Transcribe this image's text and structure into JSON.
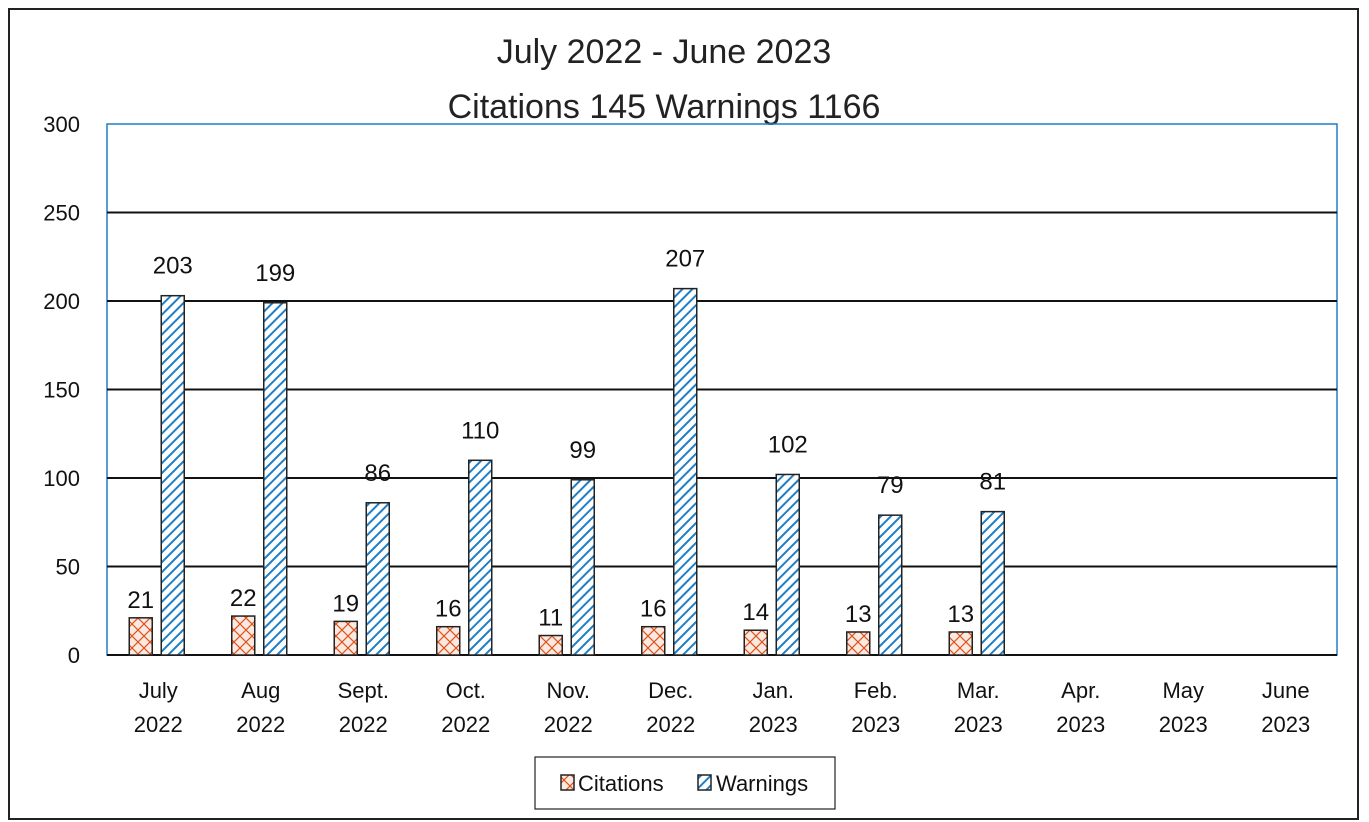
{
  "chart_data": {
    "type": "bar",
    "title": "July 2022 - June 2023",
    "subtitle": "Citations 145 Warnings 1166",
    "xlabel": "",
    "ylabel": "",
    "ylim": [
      0,
      300
    ],
    "yticks": [
      "0",
      "50",
      "100",
      "150",
      "200",
      "250",
      "300"
    ],
    "grid": true,
    "legend_position": "bottom",
    "categories": [
      [
        "July",
        "2022"
      ],
      [
        "Aug",
        "2022"
      ],
      [
        "Sept.",
        "2022"
      ],
      [
        "Oct.",
        "2022"
      ],
      [
        "Nov.",
        "2022"
      ],
      [
        "Dec.",
        "2022"
      ],
      [
        "Jan.",
        "2023"
      ],
      [
        "Feb.",
        "2023"
      ],
      [
        "Mar.",
        "2023"
      ],
      [
        "Apr.",
        "2023"
      ],
      [
        "May",
        "2023"
      ],
      [
        "June",
        "2023"
      ]
    ],
    "series": [
      {
        "name": "Citations",
        "color": "#d9541e",
        "pattern": "crosshatch",
        "values": [
          21,
          22,
          19,
          16,
          11,
          16,
          14,
          13,
          13,
          null,
          null,
          null
        ]
      },
      {
        "name": "Warnings",
        "color": "#1f7fc6",
        "pattern": "diagonal",
        "values": [
          203,
          199,
          86,
          110,
          99,
          207,
          102,
          79,
          81,
          null,
          null,
          null
        ]
      }
    ]
  }
}
